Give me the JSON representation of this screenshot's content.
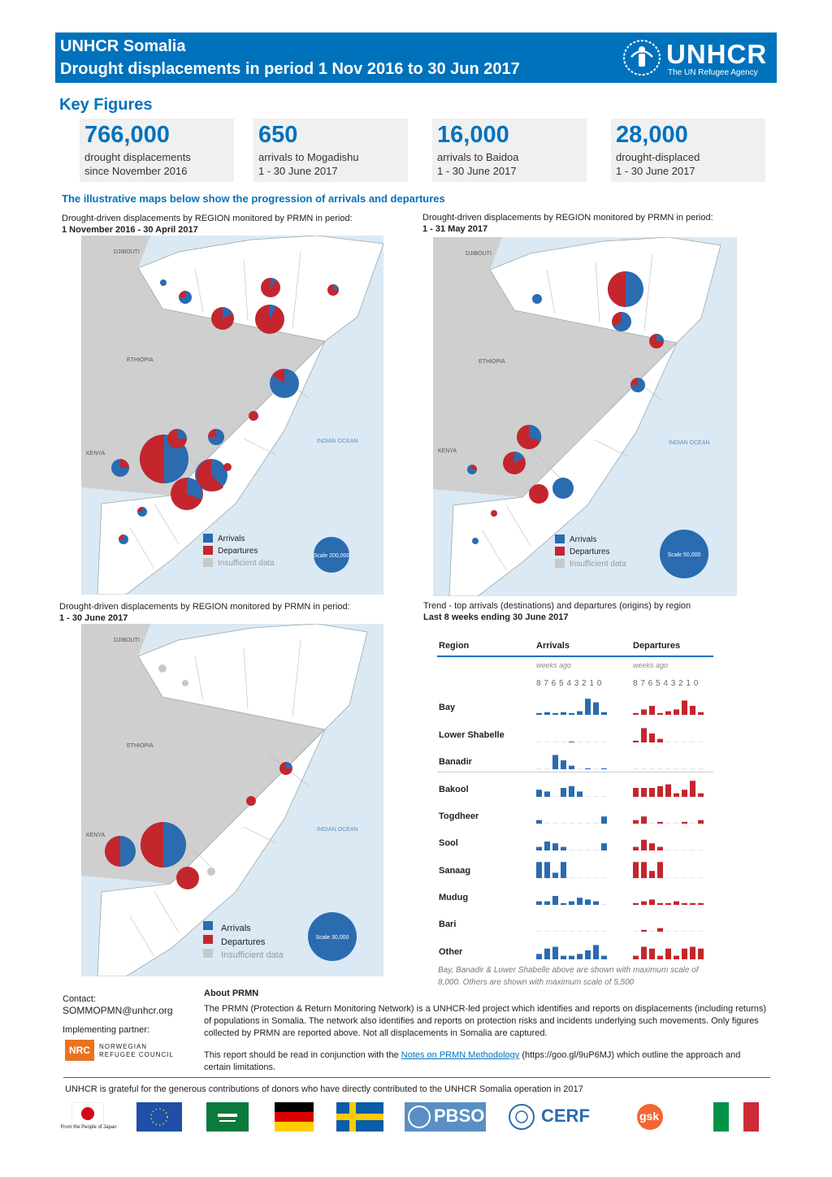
{
  "header": {
    "title": "UNHCR Somalia",
    "subtitle": "Drought displacements in period 1 Nov 2016 to 30 Jun 2017"
  },
  "logo": {
    "name": "UNHCR",
    "tagline": "The UN Refugee Agency"
  },
  "key_figures": {
    "title": "Key Figures",
    "items": [
      {
        "value": "766,000",
        "line1": "drought displacements",
        "line2": "since November 2016"
      },
      {
        "value": "650",
        "line1": "arrivals to Mogadishu",
        "line2": "1 - 30 June 2017"
      },
      {
        "value": "16,000",
        "line1": "arrivals to Baidoa",
        "line2": "1 - 30 June 2017"
      },
      {
        "value": "28,000",
        "line1": "drought-displaced",
        "line2": "1 - 30 June 2017"
      }
    ]
  },
  "illustrative": "The illustrative maps below show the progression of arrivals and departures",
  "maps": [
    {
      "caption": "Drought-driven displacements by REGION monitored by PRMN in period:",
      "period": "1 November 2016 - 30 April 2017",
      "scale": "Scale 200,000"
    },
    {
      "caption": "Drought-driven displacements by REGION monitored by PRMN in period:",
      "period": "1 - 31 May 2017",
      "scale": "Scale 50,000"
    },
    {
      "caption": "Drought-driven displacements by REGION monitored by PRMN in period:",
      "period": "1 - 30 June 2017",
      "scale": "Scale 30,000"
    }
  ],
  "map_labels": {
    "djibouti": "DJIBOUTI",
    "ethiopia": "ETHIOPIA",
    "kenya": "KENYA",
    "ocean": "INDIAN OCEAN"
  },
  "legend": {
    "arrivals": "Arrivals",
    "departures": "Departures",
    "insufficient": "Insufficient data"
  },
  "colors": {
    "arrivals": "#2b6bb0",
    "departures": "#c4262e",
    "insufficient": "#c8c8c8",
    "brand": "#0072bc"
  },
  "trend": {
    "caption": "Trend - top arrivals (destinations) and departures (origins) by region",
    "period": "Last 8 weeks ending 30 June 2017",
    "col_region": "Region",
    "col_arrivals": "Arrivals",
    "col_departures": "Departures",
    "weeks_ago": "weeks ago",
    "week_ticks": "8 7 6 5 4 3 2 1 0",
    "note": "Bay, Banadir & Lower Shabelle above are shown with maximum scale of 8,000. Others are shown with maximum scale of 5,500"
  },
  "chart_data": {
    "type": "bar",
    "categories": [
      "8",
      "7",
      "6",
      "5",
      "4",
      "3",
      "2",
      "1",
      "0"
    ],
    "rows": [
      {
        "region": "Bay",
        "arrivals": [
          0.1,
          0.15,
          0.1,
          0.15,
          0.1,
          0.2,
          0.9,
          0.7,
          0.15
        ],
        "departures": [
          0.1,
          0.3,
          0.5,
          0.1,
          0.2,
          0.3,
          0.8,
          0.5,
          0.15
        ]
      },
      {
        "region": "Lower Shabelle",
        "arrivals": [
          0,
          0,
          0,
          0,
          0.05,
          0,
          0,
          0,
          0
        ],
        "departures": [
          0.1,
          0.8,
          0.5,
          0.2,
          0,
          0,
          0,
          0,
          0
        ]
      },
      {
        "region": "Banadir",
        "arrivals": [
          0,
          0,
          0.8,
          0.5,
          0.2,
          0,
          0.05,
          0,
          0.05
        ],
        "departures": [
          0,
          0,
          0,
          0,
          0,
          0,
          0,
          0,
          0
        ]
      },
      {
        "region": "Bakool",
        "arrivals": [
          0.4,
          0.3,
          0,
          0.5,
          0.6,
          0.3,
          0,
          0,
          0
        ],
        "departures": [
          0.5,
          0.5,
          0.5,
          0.6,
          0.7,
          0.2,
          0.4,
          0.9,
          0.2
        ]
      },
      {
        "region": "Togdheer",
        "arrivals": [
          0.2,
          0,
          0,
          0,
          0,
          0,
          0,
          0,
          0.4
        ],
        "departures": [
          0.2,
          0.4,
          0,
          0.1,
          0,
          0,
          0.1,
          0,
          0.2
        ]
      },
      {
        "region": "Sool",
        "arrivals": [
          0.2,
          0.5,
          0.4,
          0.2,
          0,
          0,
          0,
          0,
          0.4
        ],
        "departures": [
          0.2,
          0.6,
          0.4,
          0.2,
          0,
          0,
          0,
          0,
          0
        ]
      },
      {
        "region": "Sanaag",
        "arrivals": [
          0.9,
          0.9,
          0.3,
          0.9,
          0,
          0,
          0,
          0,
          0
        ],
        "departures": [
          0.9,
          0.9,
          0.4,
          0.9,
          0,
          0,
          0,
          0,
          0
        ]
      },
      {
        "region": "Mudug",
        "arrivals": [
          0.2,
          0.2,
          0.5,
          0.1,
          0.2,
          0.4,
          0.3,
          0.2,
          0
        ],
        "departures": [
          0.1,
          0.2,
          0.3,
          0.1,
          0.1,
          0.2,
          0.1,
          0.1,
          0.1
        ]
      },
      {
        "region": "Bari",
        "arrivals": [
          0,
          0,
          0,
          0,
          0,
          0,
          0,
          0,
          0
        ],
        "departures": [
          0,
          0.1,
          0,
          0.2,
          0,
          0,
          0,
          0,
          0
        ]
      },
      {
        "region": "Other",
        "arrivals": [
          0.3,
          0.6,
          0.7,
          0.2,
          0.2,
          0.3,
          0.5,
          0.8,
          0.2
        ],
        "departures": [
          0.2,
          0.7,
          0.6,
          0.2,
          0.6,
          0.2,
          0.6,
          0.7,
          0.6
        ]
      }
    ]
  },
  "contact": {
    "label": "Contact:",
    "email": "SOMMOPMN@unhcr.org",
    "partner_label": "Implementing partner:",
    "partner_name": "NORWEGIAN REFUGEE COUNCIL",
    "partner_abbr": "NRC"
  },
  "about": {
    "title": "About PRMN",
    "body": "The PRMN (Protection & Return Monitoring Network) is a UNHCR-led project which identifies and reports on displacements (including returns) of populations in Somalia. The network also identifies and reports on protection risks and incidents underlying such movements. Only figures collected by PRMN are reported above. Not all displacements in Somalia are captured.",
    "read_pre": "This report should be read in conjunction with the ",
    "read_link": "Notes on PRMN Methodology",
    "read_post": " (https://goo.gl/9uP6MJ) which outline the approach and certain limitations."
  },
  "donors": {
    "line": "UNHCR is grateful for the generous contributions of donors who have directly contributed to the UNHCR Somalia operation in 2017",
    "japan": "From the People of Japan",
    "pbso": "PBSO",
    "cerf": "CERF",
    "gsk": "gsk"
  }
}
